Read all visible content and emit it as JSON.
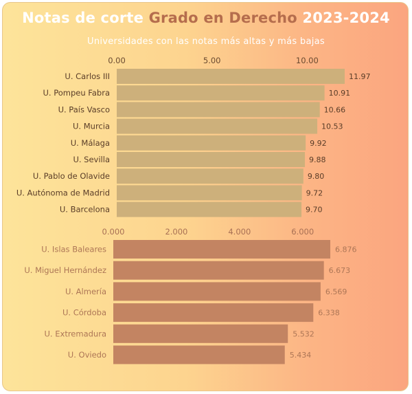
{
  "header": {
    "title_part1": "Notas de corte ",
    "title_part2": "Grado en Derecho",
    "title_part3": " 2023-2024",
    "subtitle": "Universidades con las notas más altas y más bajas"
  },
  "colors": {
    "top_bar": "#cdb07b",
    "bottom_bar": "#c38462",
    "top_text": "#5a3d28",
    "bottom_text": "#ad7656",
    "top_tick": "#6a4a30",
    "bottom_tick": "#a87054"
  },
  "chart_data": [
    {
      "type": "bar",
      "orientation": "horizontal",
      "xlim": [
        0,
        12
      ],
      "ticks": [
        0,
        5,
        10
      ],
      "tick_labels": [
        "0.00",
        "5.00",
        "10.00"
      ],
      "categories": [
        "U. Carlos III",
        "U. Pompeu Fabra",
        "U. País Vasco",
        "U. Murcia",
        "U. Málaga",
        "U. Sevilla",
        "U. Pablo de Olavide",
        "U. Autónoma de Madrid",
        "U. Barcelona"
      ],
      "values": [
        11.97,
        10.91,
        10.66,
        10.53,
        9.92,
        9.88,
        9.8,
        9.72,
        9.7
      ],
      "value_labels": [
        "11.97",
        "10.91",
        "10.66",
        "10.53",
        "9.92",
        "9.88",
        "9.80",
        "9.72",
        "9.70"
      ]
    },
    {
      "type": "bar",
      "orientation": "horizontal",
      "xlim": [
        0,
        6.9
      ],
      "ticks": [
        0,
        2,
        4,
        6
      ],
      "tick_labels": [
        "0.000",
        "2.000",
        "4.000",
        "6.000"
      ],
      "categories": [
        "U. Islas Baleares",
        "U. Miguel Hernández",
        "U. Almería",
        "U. Córdoba",
        "U. Extremadura",
        "U. Oviedo"
      ],
      "values": [
        6.876,
        6.673,
        6.569,
        6.338,
        5.532,
        5.434
      ],
      "value_labels": [
        "6.876",
        "6.673",
        "6.569",
        "6.338",
        "5.532",
        "5.434"
      ]
    }
  ]
}
